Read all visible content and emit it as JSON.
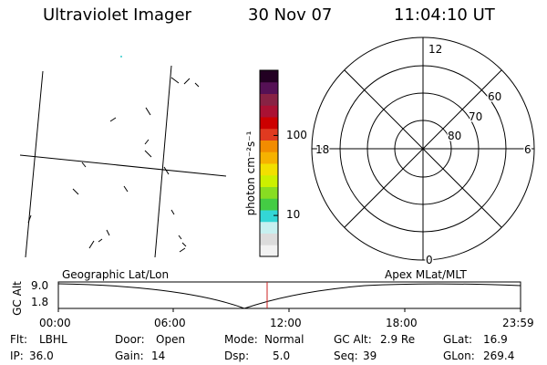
{
  "header": {
    "title": "Ultraviolet Imager",
    "date": "30 Nov 07",
    "time": "11:04:10 UT"
  },
  "colorbar": {
    "label": "photon cm⁻²s⁻¹",
    "ticks": [
      "100",
      "10"
    ],
    "colors": [
      "#f2f2f2",
      "#dcdcdc",
      "#c7f0f0",
      "#33d6d6",
      "#44cc44",
      "#88dd22",
      "#ccf000",
      "#f2e000",
      "#f6b200",
      "#f28c00",
      "#e03a20",
      "#cc0000",
      "#aa1133",
      "#882244",
      "#551155",
      "#220022"
    ]
  },
  "polar_plot": {
    "hour_labels": [
      "12",
      "18",
      "6",
      "0"
    ],
    "lat_labels": [
      "60",
      "70",
      "80"
    ]
  },
  "timeline": {
    "left_caption": "Geographic Lat/Lon",
    "right_caption": "Apex MLat/MLT",
    "ylabel": "GC Alt",
    "y_ticks": [
      "9.0",
      "1.8"
    ],
    "x_ticks": [
      "00:00",
      "06:00",
      "12:00",
      "18:00",
      "23:59"
    ],
    "cursor_color": "#cc2222"
  },
  "info": {
    "flt_label": "Flt:",
    "flt_value": "LBHL",
    "ip_label": "IP:",
    "ip_value": "36.0",
    "door_label": "Door:",
    "door_value": "Open",
    "gain_label": "Gain:",
    "gain_value": "14",
    "mode_label": "Mode:",
    "mode_value": "Normal",
    "dsp_label": "Dsp:",
    "dsp_value": "5.0",
    "gcalt_label": "GC Alt:",
    "gcalt_value": "2.9 Re",
    "seq_label": "Seq:",
    "seq_value": "39",
    "glat_label": "GLat:",
    "glat_value": "16.9",
    "glon_label": "GLon:",
    "glon_value": "269.4"
  }
}
